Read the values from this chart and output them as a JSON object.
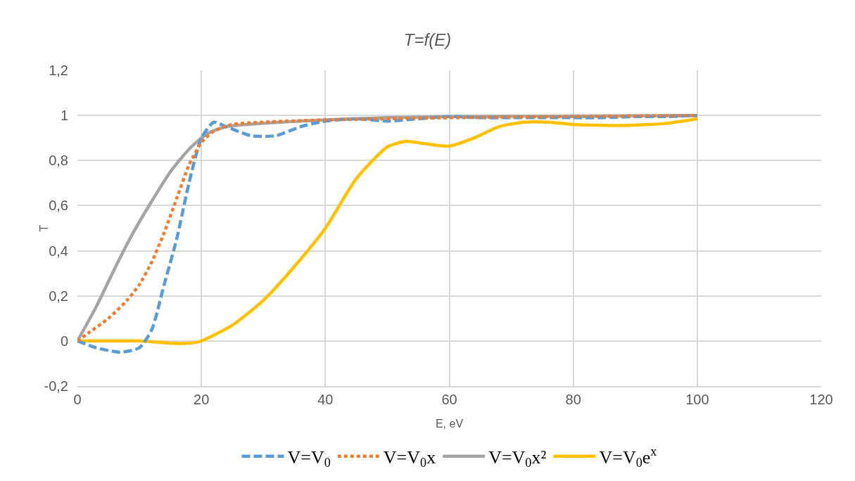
{
  "chart_data": {
    "type": "line",
    "title": "T=f(E)",
    "xlabel": "E, eV",
    "ylabel": "T",
    "xlim": [
      0,
      120
    ],
    "xticks": [
      0,
      20,
      40,
      60,
      80,
      100,
      120
    ],
    "ylim": [
      -0.2,
      1.2
    ],
    "yticks": [
      {
        "value": -0.2,
        "label": "-0,2"
      },
      0,
      {
        "value": 0.2,
        "label": "0,2"
      },
      {
        "value": 0.4,
        "label": "0,4"
      },
      {
        "value": 0.6,
        "label": "0,6"
      },
      {
        "value": 0.8,
        "label": "0,8"
      },
      1,
      {
        "value": 1.2,
        "label": "1,2"
      }
    ],
    "grid": true,
    "legend": "bottom",
    "marker": "none",
    "series": [
      {
        "name": "V=V$_{0}$",
        "color": "#5b9bd5",
        "line_style": "dashed",
        "x": [
          0,
          3,
          7,
          10,
          12,
          14,
          16,
          18,
          20,
          22,
          24,
          28,
          32,
          36,
          40,
          45,
          50,
          55,
          60,
          65,
          70,
          75,
          80,
          85,
          90,
          95,
          100
        ],
        "values": [
          0,
          -0.03,
          -0.05,
          -0.03,
          0.05,
          0.25,
          0.45,
          0.7,
          0.9,
          0.97,
          0.95,
          0.91,
          0.91,
          0.95,
          0.975,
          0.985,
          0.975,
          0.985,
          0.995,
          0.99,
          0.99,
          0.99,
          0.99,
          0.99,
          0.995,
          0.995,
          1
        ]
      },
      {
        "name": "V=V$_{0}$x",
        "color": "#ed7d31",
        "line_style": "dotted",
        "x": [
          0,
          2,
          5,
          8,
          10,
          12,
          14,
          16,
          18,
          20,
          22,
          25,
          30,
          40,
          60,
          80,
          100
        ],
        "values": [
          0,
          0.04,
          0.1,
          0.18,
          0.25,
          0.35,
          0.48,
          0.63,
          0.78,
          0.88,
          0.93,
          0.96,
          0.97,
          0.98,
          0.99,
          0.995,
          1
        ]
      },
      {
        "name": "V=V$_{0}$x²",
        "color": "#a5a5a5",
        "line_style": "solid",
        "x": [
          0,
          3,
          6,
          9,
          12,
          15,
          18,
          21,
          24,
          30,
          40,
          50,
          60,
          80,
          100
        ],
        "values": [
          0,
          0.15,
          0.32,
          0.48,
          0.62,
          0.75,
          0.85,
          0.92,
          0.95,
          0.965,
          0.98,
          0.99,
          0.995,
          0.997,
          1
        ]
      },
      {
        "name": "V=V$_{0}$e$^{x}$",
        "color": "#ffc000",
        "line_style": "solid",
        "x": [
          0,
          5,
          10,
          15,
          18,
          20,
          25,
          30,
          35,
          40,
          45,
          50,
          53,
          56,
          60,
          64,
          68,
          72,
          76,
          80,
          88,
          95,
          100
        ],
        "values": [
          0,
          0,
          0,
          -0.01,
          -0.01,
          0,
          0.07,
          0.18,
          0.33,
          0.5,
          0.72,
          0.86,
          0.885,
          0.875,
          0.864,
          0.9,
          0.95,
          0.97,
          0.97,
          0.96,
          0.955,
          0.965,
          0.985
        ]
      }
    ]
  }
}
